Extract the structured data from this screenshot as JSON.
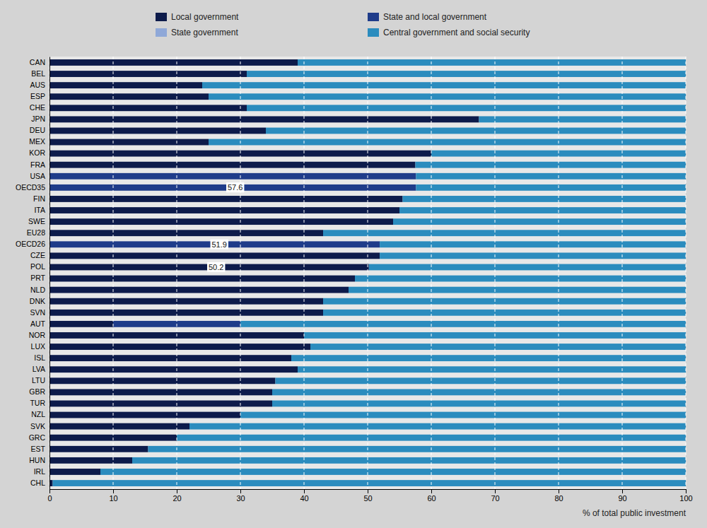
{
  "chart_data": {
    "type": "bar",
    "orientation": "horizontal",
    "stacked": true,
    "categories": [
      "CAN",
      "BEL",
      "AUS",
      "ESP",
      "CHE",
      "JPN",
      "DEU",
      "MEX",
      "KOR",
      "FRA",
      "USA",
      "OECD35",
      "FIN",
      "ITA",
      "SWE",
      "EU28",
      "OECD26",
      "CZE",
      "POL",
      "PRT",
      "NLD",
      "DNK",
      "SVN",
      "AUT",
      "NOR",
      "LUX",
      "ISL",
      "LVA",
      "LTU",
      "GBR",
      "TUR",
      "NZL",
      "SVK",
      "GRC",
      "EST",
      "HUN",
      "IRL",
      "CHL"
    ],
    "series": [
      {
        "name": "Local government",
        "color": "#0d1b4b",
        "values": [
          39.0,
          31.0,
          24.0,
          25.0,
          31.0,
          67.5,
          34.0,
          25.0,
          60.0,
          57.5,
          0.0,
          0.0,
          55.5,
          55.0,
          54.0,
          43.0,
          0.0,
          51.9,
          50.2,
          48.0,
          47.0,
          43.0,
          43.0,
          10.0,
          40.0,
          41.0,
          38.0,
          39.0,
          35.5,
          35.0,
          35.0,
          30.0,
          22.0,
          20.0,
          15.5,
          13.0,
          8.0,
          0.5
        ]
      },
      {
        "name": "State and local government",
        "color": "#1f3c8a",
        "values": [
          0.0,
          0.0,
          0.0,
          0.0,
          0.0,
          0.0,
          0.0,
          0.0,
          0.0,
          0.0,
          57.6,
          57.6,
          0.0,
          0.0,
          0.0,
          0.0,
          51.9,
          0.0,
          0.0,
          0.0,
          0.0,
          0.0,
          0.0,
          20.0,
          0.0,
          0.0,
          0.0,
          0.0,
          0.0,
          0.0,
          0.0,
          0.0,
          0.0,
          0.0,
          0.0,
          0.0,
          0.0,
          0.0
        ]
      },
      {
        "name": "State government",
        "color": "#8fa8d8",
        "values": [
          0.0,
          0.0,
          0.0,
          0.0,
          0.0,
          0.0,
          0.0,
          0.0,
          0.0,
          0.0,
          0.0,
          0.0,
          0.0,
          0.0,
          0.0,
          0.0,
          0.0,
          0.0,
          0.0,
          0.0,
          0.0,
          0.0,
          0.0,
          0.0,
          0.0,
          0.0,
          0.0,
          0.0,
          0.0,
          0.0,
          0.0,
          0.0,
          0.0,
          0.0,
          0.0,
          0.0,
          0.0,
          0.0
        ]
      },
      {
        "name": "Central government and social security",
        "color": "#2b8cbe",
        "values": [
          61.0,
          69.0,
          76.0,
          75.0,
          69.0,
          32.5,
          66.0,
          75.0,
          40.0,
          42.5,
          42.4,
          42.4,
          44.5,
          45.0,
          46.0,
          57.0,
          48.1,
          48.1,
          49.8,
          52.0,
          53.0,
          57.0,
          57.0,
          70.0,
          60.0,
          59.0,
          62.0,
          61.0,
          64.5,
          65.0,
          65.0,
          70.0,
          78.0,
          80.0,
          84.5,
          87.0,
          92.0,
          99.5
        ]
      }
    ],
    "xlabel": "% of total public investment",
    "xlim": [
      0,
      100
    ],
    "xticks": [
      0,
      10,
      20,
      30,
      40,
      50,
      60,
      70,
      80,
      90,
      100
    ],
    "grid": true,
    "legend": "top",
    "annotations": [
      {
        "category": "OECD35",
        "text": "57.6",
        "x": 28.0
      },
      {
        "category": "OECD26",
        "text": "51.9",
        "x": 25.5
      },
      {
        "category": "POL",
        "text": "50.2",
        "x": 25.0
      }
    ]
  }
}
